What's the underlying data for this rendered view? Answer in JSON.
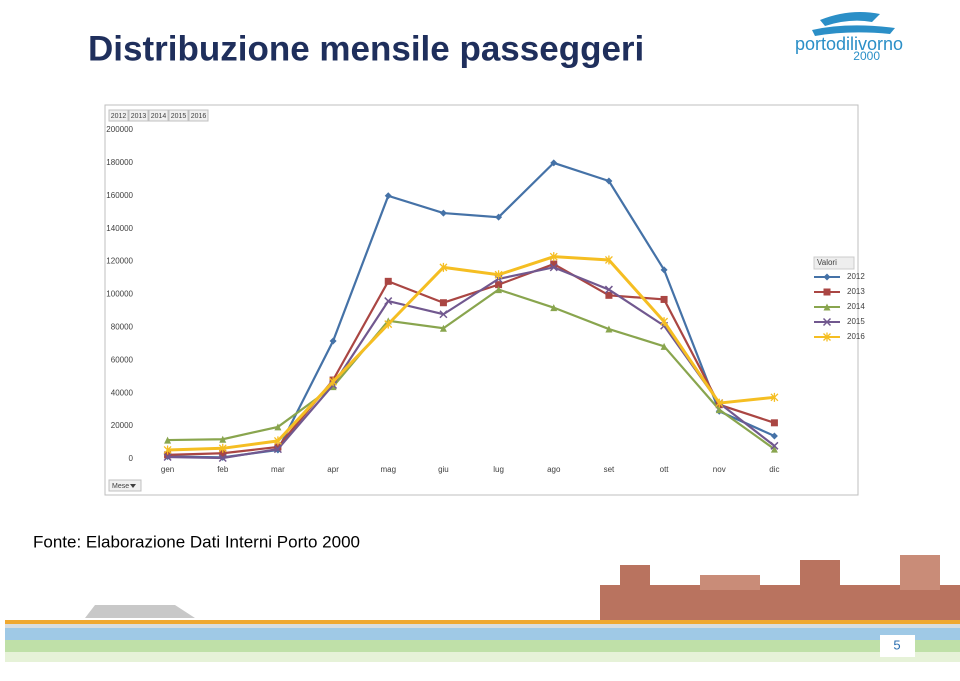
{
  "title": "Distribuzione mensile passeggeri",
  "source": "Fonte: Elaborazione Dati Interni Porto 2000",
  "page_number": "5",
  "logo": {
    "name": "portodilivorno",
    "year": "2000"
  },
  "chart_data": {
    "type": "line",
    "legend_title": "Valori",
    "x_field": "Mese",
    "legend": "right",
    "categories": [
      "gen",
      "feb",
      "mar",
      "apr",
      "mag",
      "giu",
      "lug",
      "ago",
      "set",
      "ott",
      "nov",
      "dic"
    ],
    "ylim": [
      0,
      200000
    ],
    "yticks": [
      0,
      20000,
      40000,
      60000,
      80000,
      100000,
      120000,
      140000,
      160000,
      180000,
      200000
    ],
    "series": [
      {
        "name": "2012",
        "color": "#4572a7",
        "marker": "diamond",
        "values": [
          1500,
          1000,
          5500,
          71700,
          160000,
          149500,
          147000,
          180000,
          169000,
          115000,
          29000,
          14000
        ]
      },
      {
        "name": "2013",
        "color": "#aa4643",
        "marker": "square",
        "values": [
          2500,
          3500,
          7300,
          48000,
          108000,
          95000,
          106000,
          118500,
          99500,
          97000,
          33000,
          22000
        ]
      },
      {
        "name": "2014",
        "color": "#89a54e",
        "marker": "triangle",
        "values": [
          11500,
          12000,
          19500,
          44000,
          84000,
          79500,
          103000,
          92000,
          79000,
          68500,
          30000,
          6000
        ]
      },
      {
        "name": "2015",
        "color": "#71588f",
        "marker": "x",
        "values": [
          1200,
          600,
          6000,
          45000,
          96000,
          88000,
          109500,
          116500,
          103000,
          81000,
          34000,
          8000
        ]
      },
      {
        "name": "2016",
        "color": "#f5be22",
        "marker": "star",
        "values": [
          5500,
          6500,
          11000,
          47000,
          82000,
          116500,
          112000,
          123000,
          121000,
          83500,
          34000,
          37500
        ]
      }
    ]
  }
}
